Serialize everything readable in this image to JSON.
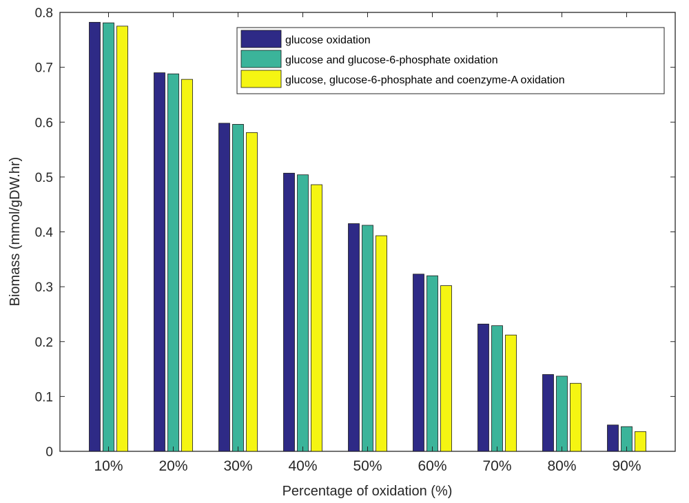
{
  "chart_data": {
    "type": "bar",
    "title": "",
    "xlabel": "Percentage of oxidation (%)",
    "ylabel": "Biomass (mmol/gDW.hr)",
    "ylim": [
      0,
      0.8
    ],
    "yticks": [
      "0",
      "0.1",
      "0.2",
      "0.3",
      "0.4",
      "0.5",
      "0.6",
      "0.7",
      "0.8"
    ],
    "categories": [
      "10%",
      "20%",
      "30%",
      "40%",
      "50%",
      "60%",
      "70%",
      "80%",
      "90%"
    ],
    "series": [
      {
        "name": "glucose oxidation",
        "color": "#2e2a86",
        "values": [
          0.782,
          0.69,
          0.598,
          0.507,
          0.415,
          0.323,
          0.232,
          0.14,
          0.048
        ]
      },
      {
        "name": "glucose and glucose-6-phosphate oxidation",
        "color": "#3bb49a",
        "values": [
          0.781,
          0.688,
          0.596,
          0.504,
          0.412,
          0.32,
          0.229,
          0.137,
          0.045
        ]
      },
      {
        "name": "glucose, glucose-6-phosphate and coenzyme-A oxidation",
        "color": "#f5f512",
        "values": [
          0.775,
          0.678,
          0.581,
          0.486,
          0.393,
          0.302,
          0.212,
          0.124,
          0.036
        ]
      }
    ],
    "grid": false,
    "legend_position": "top-right"
  }
}
